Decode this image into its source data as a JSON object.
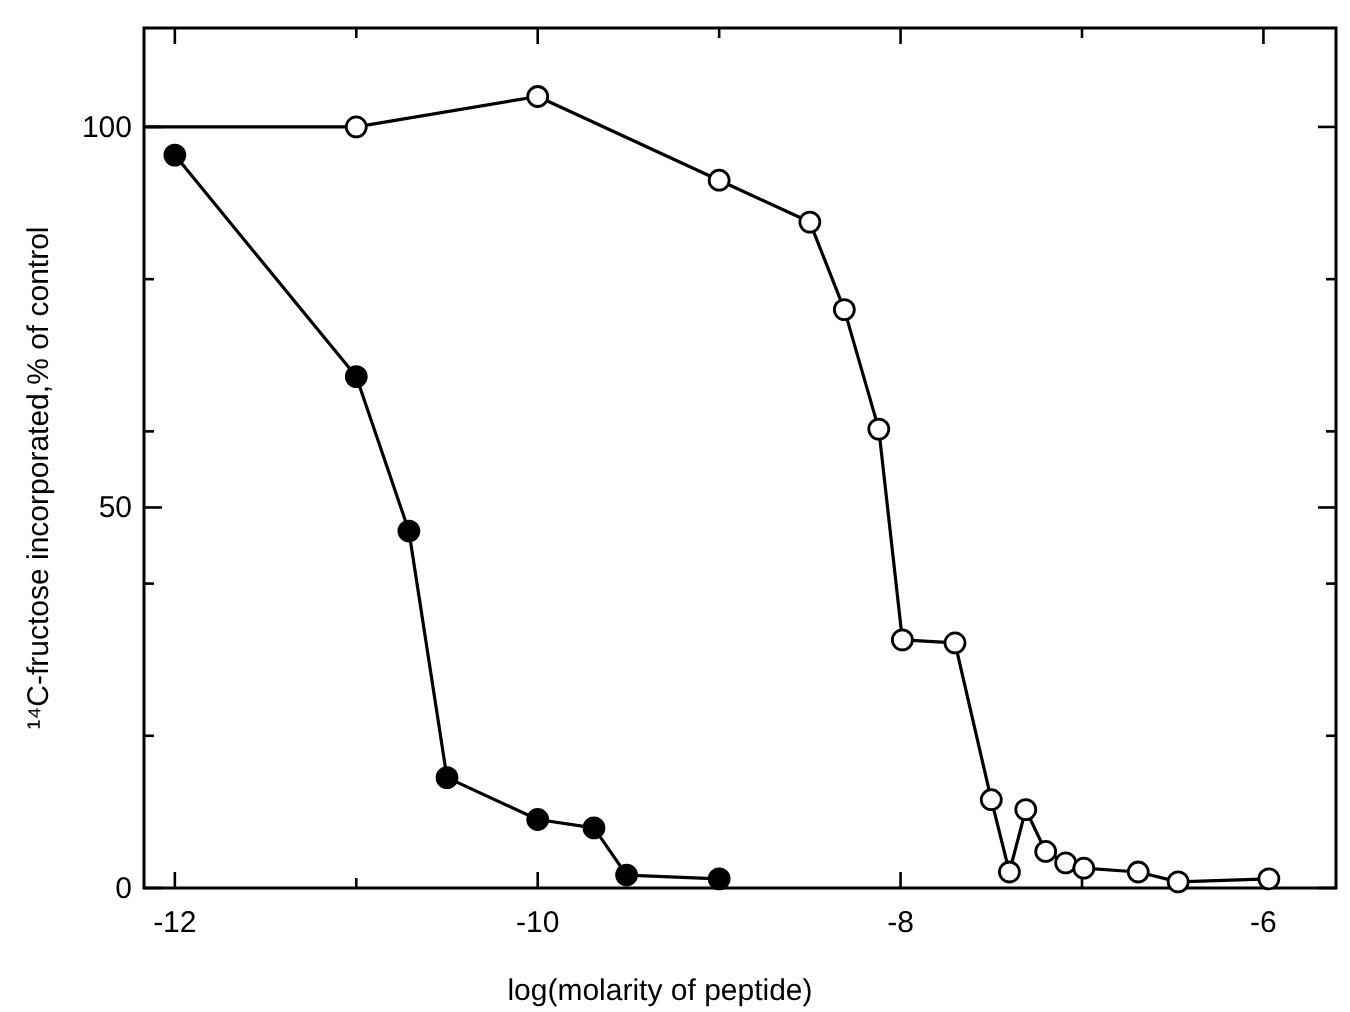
{
  "chart_data": {
    "type": "line",
    "xlabel": "log(molarity of peptide)",
    "ylabel": "¹⁴C-fructose incorporated,% of control",
    "xlim": [
      -12.17,
      -5.6
    ],
    "ylim": [
      0,
      113
    ],
    "xticks": [
      -12,
      {
        "value": -11,
        "label": null
      },
      -10,
      {
        "value": -9,
        "label": null
      },
      -8,
      {
        "value": -7,
        "label": null
      },
      -6
    ],
    "yticks": [
      0,
      {
        "value": 20,
        "label": null
      },
      {
        "value": 40,
        "label": null
      },
      50,
      {
        "value": 60,
        "label": null
      },
      {
        "value": 80,
        "label": null
      },
      100
    ],
    "grid": false,
    "marker": "circle",
    "line_style": "solid",
    "series": [
      {
        "marker": "none",
        "x": [
          -12.17,
          -11.06
        ],
        "values": [
          100,
          100
        ]
      },
      {
        "color": "#ffffff",
        "x": [
          -11,
          -10,
          -9,
          -8.5,
          -8.31,
          -8.12,
          -7.99,
          -7.7,
          -7.5,
          -7.4,
          -7.31,
          -7.2,
          -7.09,
          -6.99,
          -6.69,
          -6.47,
          -5.97
        ],
        "values": [
          100,
          104,
          93,
          87.5,
          76,
          60.3,
          32.6,
          32.2,
          11.6,
          2.1,
          10.3,
          4.8,
          3.3,
          2.6,
          2.1,
          0.8,
          1.2
        ]
      },
      {
        "color": "#000000",
        "x": [
          -12,
          -11,
          -10.71,
          -10.5,
          -10,
          -9.69,
          -9.51,
          -9
        ],
        "values": [
          96.3,
          67.2,
          46.9,
          14.5,
          9,
          7.9,
          1.7,
          1.2
        ]
      }
    ]
  }
}
